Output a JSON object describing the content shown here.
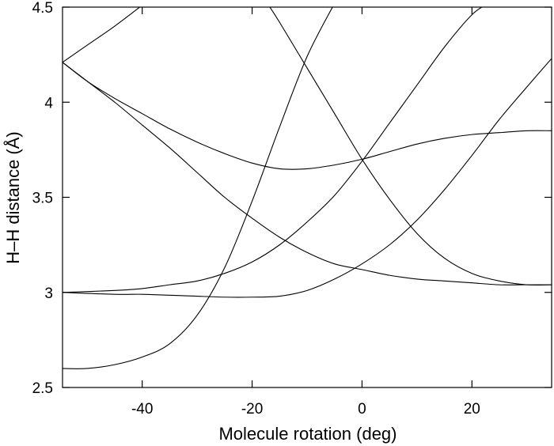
{
  "chart_data": {
    "type": "line",
    "title": "",
    "xlabel": "Molecule rotation (deg)",
    "ylabel": "H–H distance (Å)",
    "xlim": [
      -54.5,
      34.5
    ],
    "ylim": [
      2.5,
      4.5
    ],
    "xticks": [
      -40,
      -20,
      0,
      20
    ],
    "yticks": [
      2.5,
      3,
      3.5,
      4,
      4.5
    ],
    "xtick_labels": [
      "-40",
      "-20",
      "0",
      "20"
    ],
    "ytick_labels": [
      "2.5",
      "3",
      "3.5",
      "4",
      "4.5"
    ],
    "grid": false,
    "legend": "none",
    "series": [
      {
        "points": [
          [
            -54.5,
            4.21
          ],
          [
            -50,
            4.3
          ],
          [
            -45,
            4.4
          ],
          [
            -40,
            4.51
          ]
        ]
      },
      {
        "points": [
          [
            -54.5,
            4.21
          ],
          [
            -50,
            4.11
          ],
          [
            -45,
            4.02
          ],
          [
            -40,
            3.94
          ],
          [
            -35,
            3.86
          ],
          [
            -30,
            3.79
          ],
          [
            -25,
            3.73
          ],
          [
            -20,
            3.68
          ],
          [
            -15,
            3.65
          ],
          [
            -10,
            3.65
          ],
          [
            -5,
            3.67
          ],
          [
            0,
            3.7
          ],
          [
            5,
            3.74
          ],
          [
            10,
            3.78
          ],
          [
            15,
            3.81
          ],
          [
            20,
            3.83
          ],
          [
            25,
            3.84
          ],
          [
            30,
            3.85
          ],
          [
            34.5,
            3.85
          ]
        ]
      },
      {
        "points": [
          [
            -54.5,
            4.21
          ],
          [
            -50,
            4.11
          ],
          [
            -45,
            4.0
          ],
          [
            -40,
            3.88
          ],
          [
            -35,
            3.76
          ],
          [
            -30,
            3.63
          ],
          [
            -25,
            3.5
          ],
          [
            -20,
            3.39
          ],
          [
            -15,
            3.29
          ],
          [
            -10,
            3.21
          ],
          [
            -5,
            3.15
          ],
          [
            0,
            3.12
          ],
          [
            5,
            3.09
          ],
          [
            10,
            3.07
          ],
          [
            15,
            3.06
          ],
          [
            20,
            3.05
          ],
          [
            25,
            3.04
          ],
          [
            30,
            3.04
          ],
          [
            34.5,
            3.04
          ]
        ]
      },
      {
        "points": [
          [
            -54.5,
            2.6
          ],
          [
            -50,
            2.6
          ],
          [
            -45,
            2.62
          ],
          [
            -40,
            2.66
          ],
          [
            -35,
            2.73
          ],
          [
            -30,
            2.88
          ],
          [
            -25,
            3.13
          ],
          [
            -20,
            3.48
          ],
          [
            -15,
            3.87
          ],
          [
            -10,
            4.24
          ],
          [
            -5,
            4.52
          ]
        ]
      },
      {
        "points": [
          [
            -54.5,
            3.0
          ],
          [
            -45,
            3.01
          ],
          [
            -40,
            3.02
          ],
          [
            -35,
            3.04
          ],
          [
            -30,
            3.06
          ],
          [
            -25,
            3.1
          ],
          [
            -20,
            3.16
          ],
          [
            -15,
            3.25
          ],
          [
            -10,
            3.37
          ],
          [
            -5,
            3.51
          ],
          [
            0,
            3.69
          ],
          [
            5,
            3.89
          ],
          [
            10,
            4.09
          ],
          [
            15,
            4.29
          ],
          [
            20,
            4.46
          ],
          [
            23,
            4.52
          ]
        ]
      },
      {
        "points": [
          [
            -54.5,
            3.0
          ],
          [
            -45,
            2.99
          ],
          [
            -40,
            2.99
          ],
          [
            -35,
            2.985
          ],
          [
            -30,
            2.98
          ],
          [
            -25,
            2.975
          ],
          [
            -20,
            2.975
          ],
          [
            -15,
            2.98
          ],
          [
            -10,
            3.01
          ],
          [
            -5,
            3.07
          ],
          [
            0,
            3.15
          ],
          [
            5,
            3.25
          ],
          [
            10,
            3.38
          ],
          [
            15,
            3.54
          ],
          [
            20,
            3.72
          ],
          [
            25,
            3.91
          ],
          [
            30,
            4.08
          ],
          [
            34.5,
            4.23
          ]
        ]
      },
      {
        "points": [
          [
            -17,
            4.51
          ],
          [
            -15,
            4.42
          ],
          [
            -10,
            4.18
          ],
          [
            -5,
            3.94
          ],
          [
            0,
            3.7
          ],
          [
            5,
            3.49
          ],
          [
            10,
            3.31
          ],
          [
            15,
            3.18
          ],
          [
            20,
            3.1
          ],
          [
            25,
            3.06
          ],
          [
            30,
            3.04
          ],
          [
            34.5,
            3.04
          ]
        ]
      }
    ]
  }
}
